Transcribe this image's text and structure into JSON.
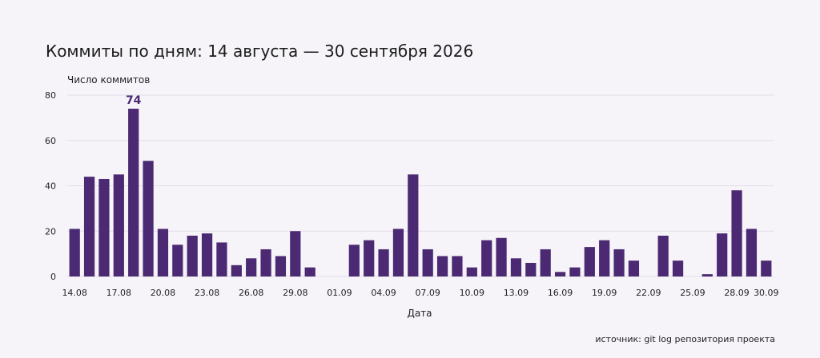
{
  "chart_data": {
    "type": "bar",
    "title": "Коммиты по дням: 14 августа — 30 сентября 2026",
    "ylabel": "Число коммитов",
    "xlabel": "Дата",
    "source": "источник: git log репозитория проекта",
    "ylim": [
      0,
      80
    ],
    "yticks": [
      0,
      20,
      40,
      60,
      80
    ],
    "grid": true,
    "bar_color": "#4b2a73",
    "categories": [
      "14.08",
      "15.08",
      "16.08",
      "17.08",
      "18.08",
      "19.08",
      "20.08",
      "21.08",
      "22.08",
      "23.08",
      "24.08",
      "25.08",
      "26.08",
      "27.08",
      "28.08",
      "29.08",
      "30.08",
      "31.08",
      "01.09",
      "02.09",
      "03.09",
      "04.09",
      "05.09",
      "06.09",
      "07.09",
      "08.09",
      "09.09",
      "10.09",
      "11.09",
      "12.09",
      "13.09",
      "14.09",
      "15.09",
      "16.09",
      "17.09",
      "18.09",
      "19.09",
      "20.09",
      "21.09",
      "22.09",
      "23.09",
      "24.09",
      "25.09",
      "26.09",
      "27.09",
      "28.09",
      "29.09",
      "30.09"
    ],
    "values": [
      21,
      44,
      43,
      45,
      74,
      51,
      21,
      14,
      18,
      19,
      15,
      5,
      8,
      12,
      9,
      20,
      4,
      0,
      0,
      14,
      16,
      12,
      21,
      45,
      12,
      9,
      9,
      4,
      16,
      17,
      8,
      6,
      12,
      2,
      4,
      13,
      16,
      12,
      7,
      0,
      18,
      7,
      0,
      1,
      19,
      38,
      21,
      7
    ],
    "xtick_labels": [
      "14.08",
      "17.08",
      "20.08",
      "23.08",
      "26.08",
      "29.08",
      "01.09",
      "04.09",
      "07.09",
      "10.09",
      "13.09",
      "16.09",
      "19.09",
      "22.09",
      "25.09",
      "28.09",
      "30.09"
    ],
    "annotation": {
      "category": "18.08",
      "text": "74"
    }
  }
}
